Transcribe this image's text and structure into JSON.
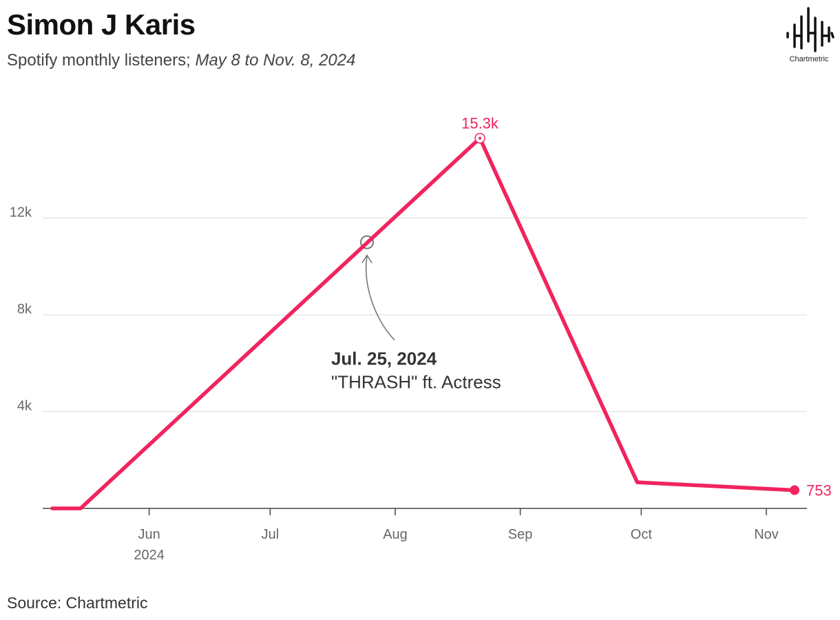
{
  "header": {
    "title": "Simon J Karis",
    "subtitle_main": "Spotify monthly listeners; ",
    "subtitle_range": "May 8 to Nov. 8, 2024"
  },
  "logo": {
    "icon": "chartmetric-waveform-icon",
    "text": "Chartmetric"
  },
  "footer": {
    "source": "Source: Chartmetric"
  },
  "colors": {
    "line": "#f0245e",
    "grid": "#e6e6e6",
    "axis": "#444444",
    "annotation": "#777777"
  },
  "chart_data": {
    "type": "line",
    "title": "Simon J Karis",
    "subtitle": "Spotify monthly listeners; May 8 to Nov. 8, 2024",
    "xlabel": "",
    "ylabel": "",
    "x_range": [
      "2024-05-08",
      "2024-11-08"
    ],
    "ylim": [
      0,
      16000
    ],
    "y_ticks": [
      {
        "value": 4000,
        "label": "4k"
      },
      {
        "value": 8000,
        "label": "8k"
      },
      {
        "value": 12000,
        "label": "12k"
      }
    ],
    "x_ticks": [
      {
        "date": "2024-06-01",
        "label": "Jun",
        "sublabel": "2024"
      },
      {
        "date": "2024-07-01",
        "label": "Jul",
        "sublabel": ""
      },
      {
        "date": "2024-08-01",
        "label": "Aug",
        "sublabel": ""
      },
      {
        "date": "2024-09-01",
        "label": "Sep",
        "sublabel": ""
      },
      {
        "date": "2024-10-01",
        "label": "Oct",
        "sublabel": ""
      },
      {
        "date": "2024-11-01",
        "label": "Nov",
        "sublabel": ""
      }
    ],
    "grid": true,
    "legend": "none",
    "series": [
      {
        "points": [
          {
            "x": "2024-05-08",
            "y": 0
          },
          {
            "x": "2024-05-15",
            "y": 0
          },
          {
            "x": "2024-08-22",
            "y": 15300
          },
          {
            "x": "2024-09-30",
            "y": 1080
          },
          {
            "x": "2024-11-08",
            "y": 753
          }
        ]
      }
    ],
    "labels": {
      "peak": {
        "x": "2024-08-22",
        "y": 15300,
        "text": "15.3k"
      },
      "last": {
        "x": "2024-11-08",
        "y": 753,
        "text": "753"
      }
    },
    "annotation": {
      "x": "2024-07-25",
      "y": 11000,
      "date_text": "Jul. 25, 2024",
      "text": "\"THRASH\" ft. Actress"
    }
  }
}
